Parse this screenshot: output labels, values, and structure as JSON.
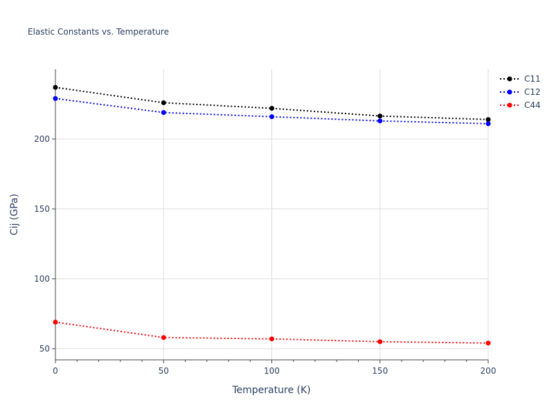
{
  "chart_data": {
    "type": "line",
    "title": "Elastic Constants vs. Temperature",
    "xlabel": "Temperature (K)",
    "ylabel": "Cij (GPa)",
    "xlim": [
      0,
      200
    ],
    "ylim": [
      42,
      250
    ],
    "xticks": [
      0,
      50,
      100,
      150,
      200
    ],
    "xtick_labels": [
      "0",
      "50",
      "100",
      "150",
      "200"
    ],
    "yticks": [
      50,
      100,
      150,
      200
    ],
    "ytick_labels": [
      "50",
      "100",
      "150",
      "200"
    ],
    "grid": true,
    "legend_position": "top-right",
    "x": [
      0,
      50,
      100,
      150,
      200
    ],
    "series": [
      {
        "name": "C11",
        "color": "#000000",
        "values": [
          237,
          226,
          222,
          216.5,
          214
        ]
      },
      {
        "name": "C12",
        "color": "#0000ff",
        "values": [
          229,
          219,
          216,
          213,
          211
        ]
      },
      {
        "name": "C44",
        "color": "#ff0000",
        "values": [
          69,
          58,
          57,
          55,
          54
        ]
      }
    ]
  }
}
